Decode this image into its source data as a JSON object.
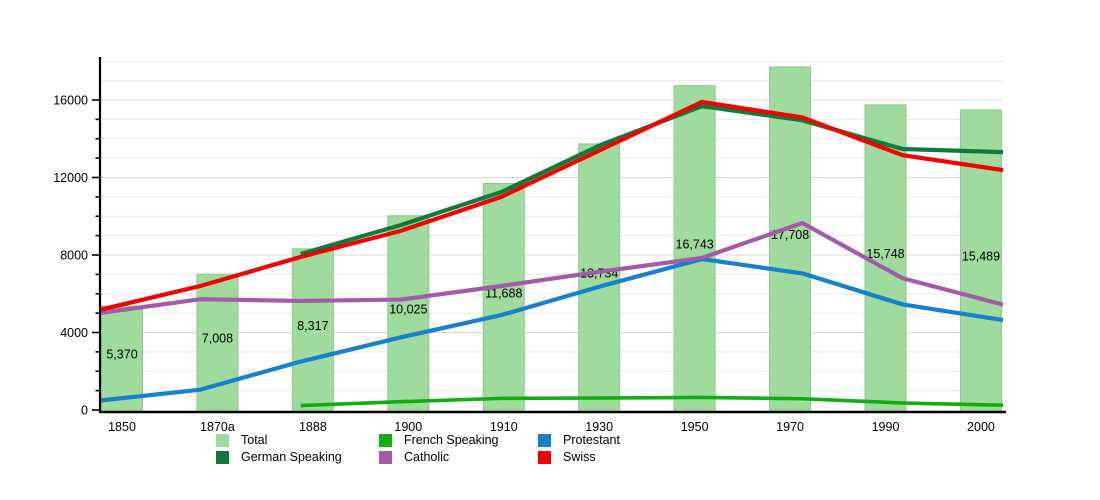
{
  "chart_data": {
    "type": "bar",
    "title": "",
    "xlabel": "",
    "ylabel": "",
    "categories": [
      "1850",
      "1870a",
      "1888",
      "1900",
      "1910",
      "1930",
      "1950",
      "1970",
      "1990",
      "2000"
    ],
    "bars": {
      "name": "Total",
      "color": "#a0db9e",
      "border_color": "#8cc98c",
      "values": [
        5370,
        7008,
        8317,
        10025,
        11688,
        13734,
        16743,
        17708,
        15748,
        15489
      ],
      "labels": [
        "5,370",
        "7,008",
        "8,317",
        "10,025",
        "11,688",
        "13,734",
        "16,743",
        "17,708",
        "15,748",
        "15,489"
      ]
    },
    "series": [
      {
        "name": "French Speaking",
        "color": "#11ad11",
        "width": 3.6,
        "values": [
          null,
          null,
          230,
          430,
          600,
          620,
          650,
          580,
          360,
          250
        ]
      },
      {
        "name": "Protestant",
        "color": "#1680c8",
        "width": 4.2,
        "values": [
          490,
          1050,
          2500,
          3750,
          4900,
          6400,
          7790,
          7050,
          5450,
          4640
        ]
      },
      {
        "name": "German Speaking",
        "color": "#0e7a3c",
        "width": 4.2,
        "values": [
          null,
          null,
          8050,
          9550,
          11250,
          13700,
          15680,
          14950,
          13470,
          13310
        ]
      },
      {
        "name": "Catholic",
        "color": "#a25ba8",
        "width": 4.2,
        "values": [
          5010,
          5720,
          5630,
          5700,
          6400,
          7150,
          7850,
          9650,
          6800,
          5440
        ]
      },
      {
        "name": "Swiss",
        "color": "#f20000",
        "width": 4.2,
        "values": [
          5170,
          6400,
          7900,
          9250,
          11000,
          13450,
          15900,
          15100,
          13150,
          12380
        ]
      }
    ],
    "y_axis": {
      "major_ticks": [
        0,
        4000,
        8000,
        12000,
        16000
      ],
      "minor_step": 1000,
      "range": [
        0,
        18200
      ],
      "grid": "horizontal",
      "minor_grid_color": "#ebebeb",
      "major_grid_color": "#d9d9d9"
    },
    "legend_position": "bottom"
  },
  "legend": {
    "items": [
      {
        "id": "total",
        "label": "Total",
        "color": "#a0db9e"
      },
      {
        "id": "german",
        "label": "German Speaking",
        "color": "#0e7a3c"
      },
      {
        "id": "french",
        "label": "French Speaking",
        "color": "#11ad11"
      },
      {
        "id": "catholic",
        "label": "Catholic",
        "color": "#a25ba8"
      },
      {
        "id": "protestant",
        "label": "Protestant",
        "color": "#1680c8"
      },
      {
        "id": "swiss",
        "label": "Swiss",
        "color": "#f20000"
      }
    ]
  }
}
